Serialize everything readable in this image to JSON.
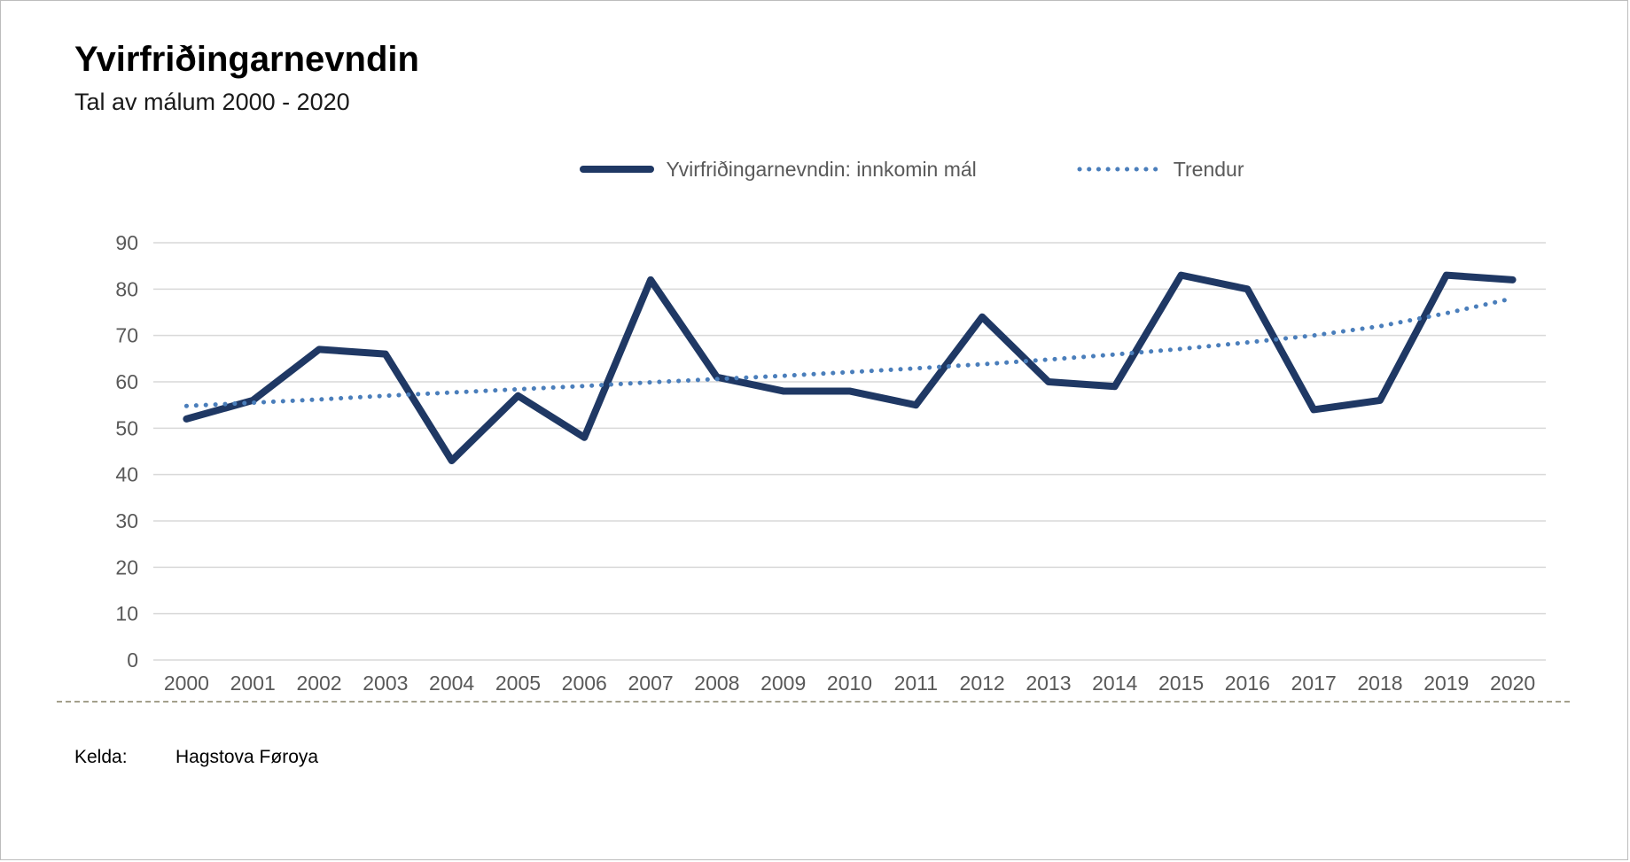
{
  "page": {
    "title": "Yvirfriðingarnevndin",
    "subtitle": "Tal av málum 2000 - 2020"
  },
  "legend": {
    "series_label": "Yvirfriðingarnevndin: innkomin mál",
    "trend_label": "Trendur"
  },
  "footer": {
    "label": "Kelda:",
    "source": "Hagstova Føroya"
  },
  "colors": {
    "series_line": "#1F3864",
    "trend_line": "#4a7ebb",
    "gridline": "#d9d9d9",
    "axis_text": "#595959",
    "separator": "#a3a08c"
  },
  "chart_data": {
    "type": "line",
    "title": "Yvirfriðingarnevndin",
    "subtitle": "Tal av málum 2000 - 2020",
    "x": [
      2000,
      2001,
      2002,
      2003,
      2004,
      2005,
      2006,
      2007,
      2008,
      2009,
      2010,
      2011,
      2012,
      2013,
      2014,
      2015,
      2016,
      2017,
      2018,
      2019,
      2020
    ],
    "series": [
      {
        "name": "Yvirfriðingarnevndin: innkomin mál",
        "style": "solid",
        "color": "#1F3864",
        "values": [
          52,
          56,
          67,
          66,
          43,
          57,
          48,
          82,
          61,
          58,
          58,
          55,
          74,
          60,
          59,
          83,
          80,
          54,
          56,
          83,
          82
        ]
      },
      {
        "name": "Trendur",
        "style": "dotted",
        "color": "#4a7ebb",
        "values": [
          54.8,
          55.5,
          56.2,
          57.0,
          57.7,
          58.4,
          59.1,
          59.9,
          60.6,
          61.3,
          62.1,
          62.9,
          63.8,
          64.8,
          65.9,
          67.1,
          68.5,
          70.0,
          72.0,
          74.8,
          78.0
        ]
      }
    ],
    "ylim": [
      0,
      90
    ],
    "y_ticks": [
      0,
      10,
      20,
      30,
      40,
      50,
      60,
      70,
      80,
      90
    ],
    "grid": "horizontal",
    "legend_position": "top-center",
    "xlabel": "",
    "ylabel": ""
  }
}
